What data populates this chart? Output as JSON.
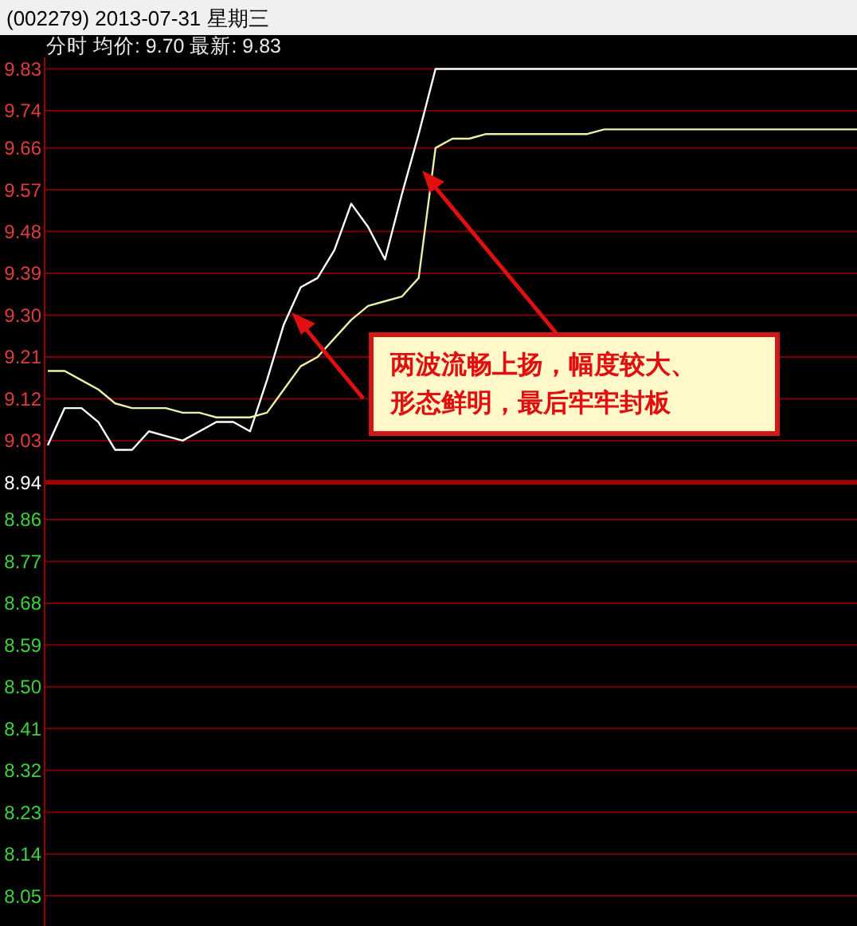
{
  "chart_data": {
    "type": "line",
    "title": "(002279) 2013-07-31 星期三",
    "subtitle": "分时 均价: 9.70 最新: 9.83",
    "categories": [
      null,
      null,
      null,
      null,
      null,
      null,
      null,
      null,
      null,
      null,
      null,
      null,
      null,
      null,
      null,
      null,
      null,
      null,
      null,
      null,
      null,
      null,
      null,
      null,
      null,
      null,
      null,
      null,
      null,
      null,
      null,
      null,
      null,
      null,
      null,
      null,
      null,
      null,
      null,
      null,
      null,
      null,
      null,
      null,
      null,
      null,
      null,
      null,
      null
    ],
    "series": [
      {
        "color": "#ffffff",
        "values": [
          9.02,
          9.1,
          9.1,
          9.07,
          9.01,
          9.01,
          9.05,
          9.04,
          9.03,
          9.05,
          9.07,
          9.07,
          9.05,
          9.16,
          9.28,
          9.36,
          9.38,
          9.44,
          9.54,
          9.49,
          9.42,
          9.56,
          9.69,
          9.83,
          9.83,
          9.83,
          9.83,
          9.83,
          9.83,
          9.83,
          9.83,
          9.83,
          9.83,
          9.83,
          9.83,
          9.83,
          9.83,
          9.83,
          9.83,
          9.83,
          9.83,
          9.83,
          9.83,
          9.83,
          9.83,
          9.83,
          9.83,
          9.83,
          9.83
        ]
      },
      {
        "color": "#eeeea8",
        "values": [
          9.18,
          9.18,
          9.16,
          9.14,
          9.11,
          9.1,
          9.1,
          9.1,
          9.09,
          9.09,
          9.08,
          9.08,
          9.08,
          9.09,
          9.14,
          9.19,
          9.21,
          9.25,
          9.29,
          9.32,
          9.33,
          9.34,
          9.38,
          9.66,
          9.68,
          9.68,
          9.69,
          9.69,
          9.69,
          9.69,
          9.69,
          9.69,
          9.69,
          9.7,
          9.7,
          9.7,
          9.7,
          9.7,
          9.7,
          9.7,
          9.7,
          9.7,
          9.7,
          9.7,
          9.7,
          9.7,
          9.7,
          9.7,
          9.7
        ]
      }
    ],
    "ylim": [
      7.985,
      9.855
    ],
    "yticks": [
      9.83,
      9.74,
      9.66,
      9.57,
      9.48,
      9.39,
      {
        "value": 9.3,
        "label": "9.30"
      },
      9.21,
      9.12,
      9.03,
      8.94,
      8.86,
      8.77,
      8.68,
      8.59,
      {
        "value": 8.5,
        "label": "8.50"
      },
      8.41,
      8.32,
      8.23,
      8.14,
      8.05
    ],
    "grid": "y",
    "marker": "none",
    "line_style": "solid",
    "ref_lines": [
      {
        "axis": "y",
        "value": 8.94,
        "color": "#a00000"
      }
    ],
    "annotations": [
      "两波流畅上扬，幅度较大、形态鲜明，最后牢牢封板"
    ]
  }
}
